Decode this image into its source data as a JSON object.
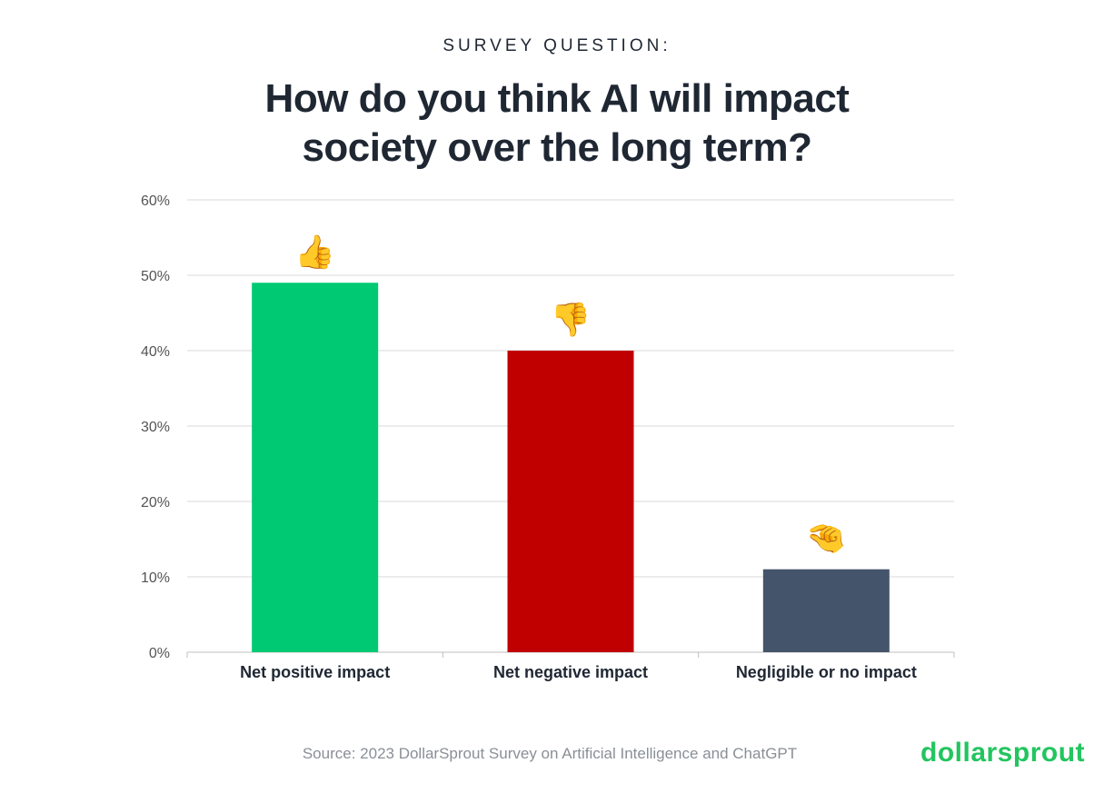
{
  "kicker": "SURVEY QUESTION:",
  "title_line1": "How do you think AI will impact",
  "title_line2": "society over the long term?",
  "source": "Source: 2023 DollarSprout Survey on Artificial Intelligence and ChatGPT",
  "logo": "dollarsprout",
  "chart_data": {
    "type": "bar",
    "categories": [
      "Net positive impact",
      "Net negative impact",
      "Negligible or no impact"
    ],
    "values": [
      49,
      40,
      11
    ],
    "colors": [
      "#00c973",
      "#c00000",
      "#44546a"
    ],
    "icons": [
      "👍",
      "👎",
      "🤏"
    ],
    "ylim": [
      0,
      60
    ],
    "yticks": [
      0,
      10,
      20,
      30,
      40,
      50,
      60
    ],
    "ytick_format": "%",
    "grid": true
  }
}
